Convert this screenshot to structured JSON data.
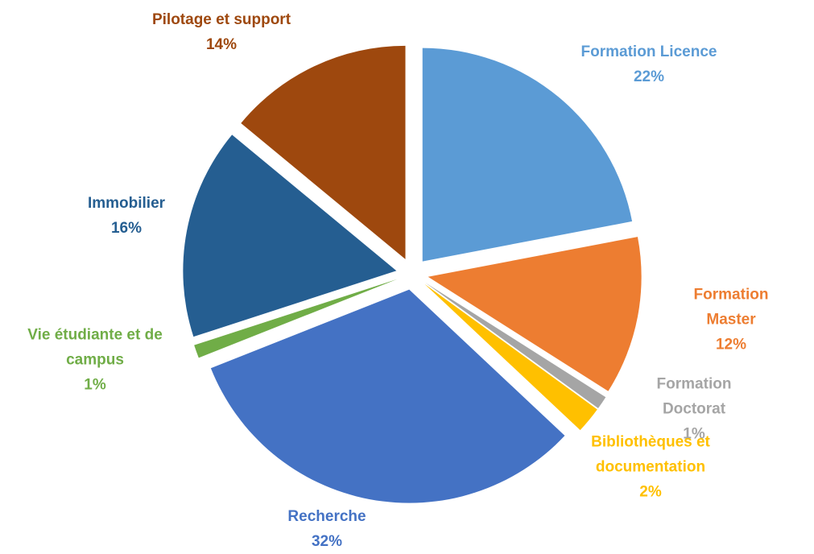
{
  "chart_data": {
    "type": "pie",
    "categories": [
      "Formation Licence",
      "Formation Master",
      "Formation Doctorat",
      "Bibliothèques et documentation",
      "Recherche",
      "Vie étudiante et de campus",
      "Immobilier",
      "Pilotage et support"
    ],
    "values": [
      22,
      12,
      1,
      2,
      32,
      1,
      16,
      14
    ],
    "value_labels": [
      "22%",
      "12%",
      "1%",
      "2%",
      "32%",
      "1%",
      "16%",
      "14%"
    ],
    "colors": [
      "#5b9bd5",
      "#ed7d31",
      "#a5a5a5",
      "#ffc000",
      "#4472c4",
      "#70ad47",
      "#255e91",
      "#9e480e"
    ]
  }
}
